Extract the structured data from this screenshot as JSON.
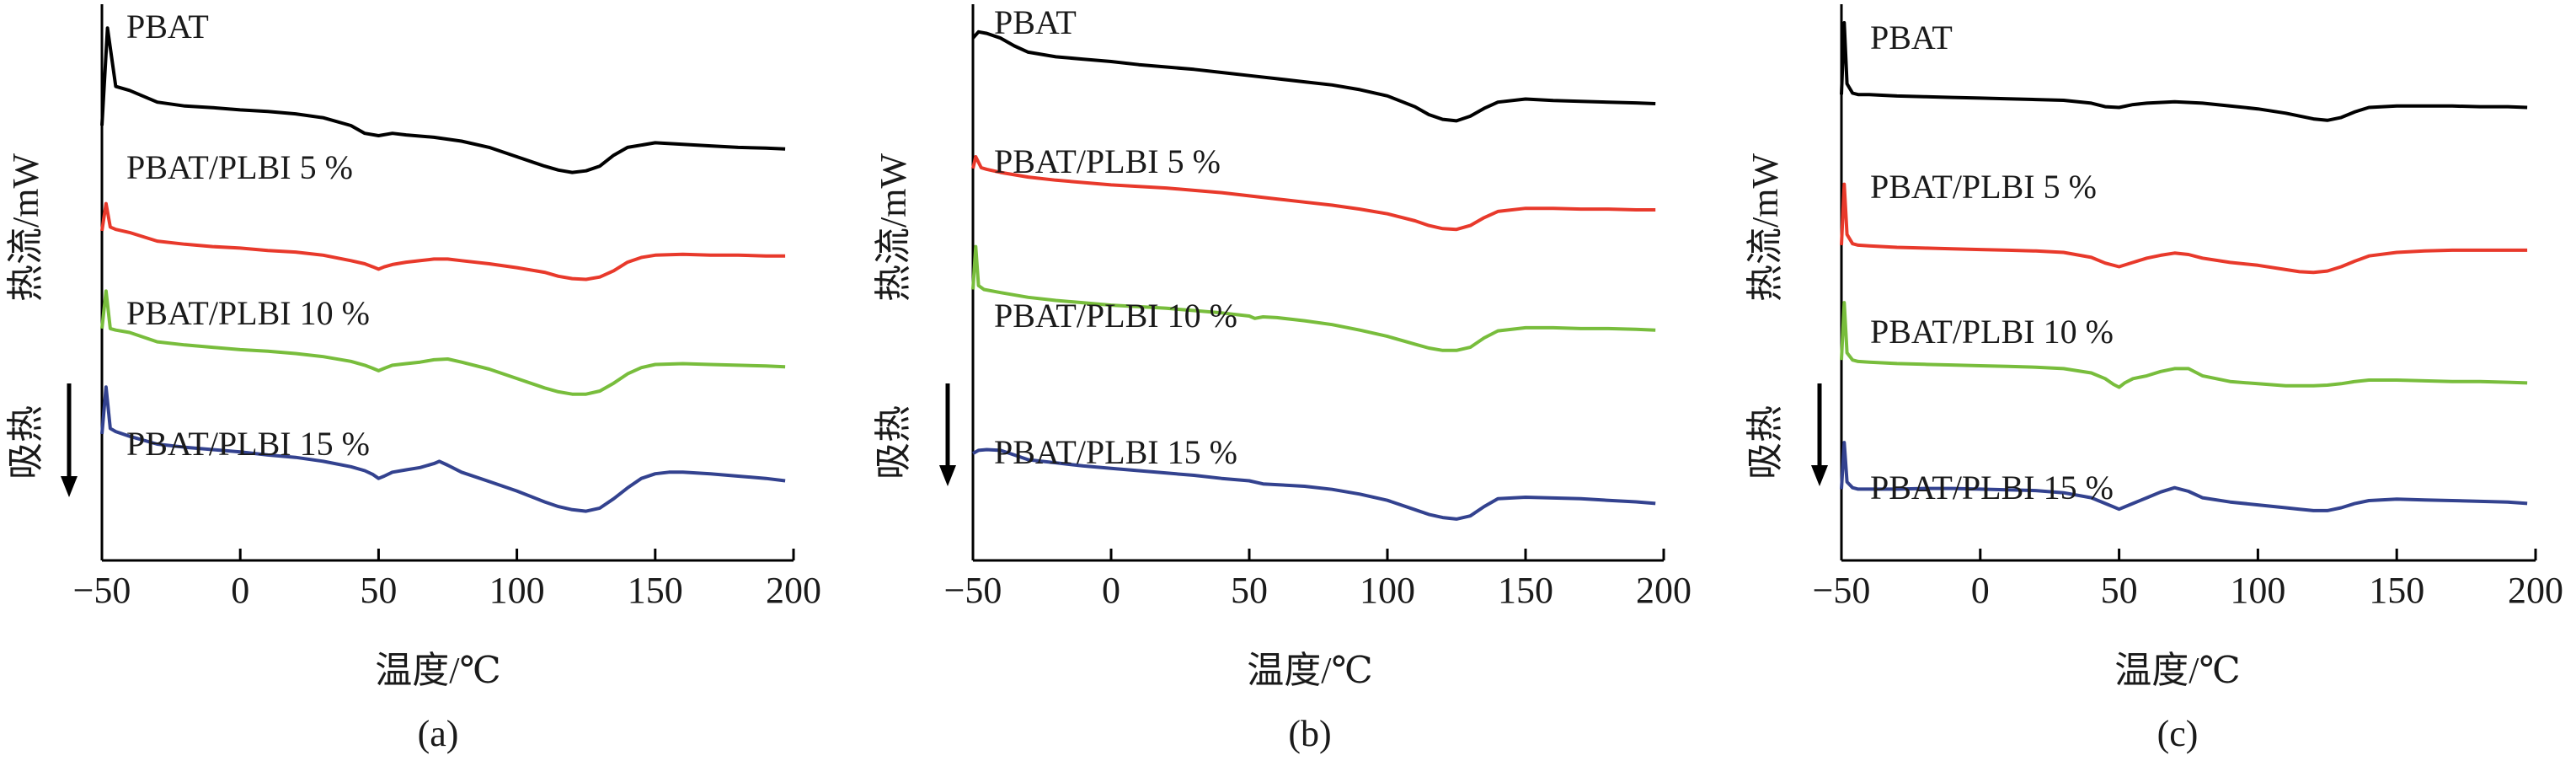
{
  "colors": {
    "PBAT": "#000000",
    "PBAT/PLBI 5 %": "#e8392b",
    "PBAT/PLBI 10 %": "#78bd3c",
    "PBAT/PLBI 15 %": "#33428f"
  },
  "chart_data": [
    {
      "type": "line",
      "panel_label": "(a)",
      "xlabel": "温度/℃",
      "ylabel": "热流/mW",
      "endo_label": "吸热",
      "xlim": [
        -50,
        200
      ],
      "xticks": [
        "−50",
        "0",
        "50",
        "100",
        "150",
        "200"
      ],
      "series": [
        {
          "name": "PBAT",
          "x": [
            -50,
            -48,
            -45,
            -40,
            -30,
            -20,
            -10,
            0,
            10,
            20,
            30,
            40,
            45,
            50,
            55,
            60,
            70,
            80,
            90,
            100,
            110,
            115,
            120,
            125,
            130,
            135,
            140,
            150,
            160,
            170,
            180,
            190,
            197
          ],
          "y": [
            2.7,
            3.95,
            3.2,
            3.15,
            3.0,
            2.95,
            2.93,
            2.9,
            2.88,
            2.85,
            2.8,
            2.7,
            2.6,
            2.57,
            2.6,
            2.58,
            2.55,
            2.5,
            2.42,
            2.3,
            2.18,
            2.13,
            2.1,
            2.12,
            2.18,
            2.32,
            2.42,
            2.48,
            2.46,
            2.44,
            2.42,
            2.41,
            2.4
          ]
        },
        {
          "name": "PBAT/PLBI 5 %",
          "x": [
            -50,
            -48.5,
            -47,
            -45,
            -40,
            -30,
            -20,
            -10,
            0,
            10,
            20,
            30,
            40,
            45,
            48,
            50,
            52,
            55,
            60,
            65,
            70,
            75,
            80,
            90,
            100,
            110,
            115,
            120,
            125,
            130,
            135,
            140,
            145,
            150,
            160,
            170,
            180,
            190,
            197
          ],
          "y": [
            1.35,
            1.7,
            1.4,
            1.37,
            1.33,
            1.22,
            1.18,
            1.15,
            1.13,
            1.1,
            1.08,
            1.04,
            0.97,
            0.93,
            0.89,
            0.86,
            0.89,
            0.92,
            0.95,
            0.97,
            0.99,
            0.99,
            0.97,
            0.93,
            0.88,
            0.82,
            0.77,
            0.74,
            0.73,
            0.76,
            0.84,
            0.95,
            1.01,
            1.04,
            1.05,
            1.04,
            1.04,
            1.03,
            1.03
          ]
        },
        {
          "name": "PBAT/PLBI 10 %",
          "x": [
            -50,
            -48.5,
            -47,
            -45,
            -40,
            -30,
            -20,
            -10,
            0,
            10,
            20,
            30,
            40,
            45,
            48,
            50,
            52,
            55,
            60,
            65,
            70,
            75,
            80,
            90,
            100,
            110,
            115,
            120,
            125,
            130,
            135,
            140,
            145,
            150,
            160,
            170,
            180,
            190,
            197
          ],
          "y": [
            0.1,
            0.58,
            0.1,
            0.08,
            0.05,
            -0.07,
            -0.11,
            -0.14,
            -0.17,
            -0.19,
            -0.22,
            -0.26,
            -0.32,
            -0.37,
            -0.41,
            -0.44,
            -0.41,
            -0.37,
            -0.35,
            -0.33,
            -0.3,
            -0.29,
            -0.33,
            -0.42,
            -0.54,
            -0.66,
            -0.71,
            -0.74,
            -0.74,
            -0.7,
            -0.6,
            -0.48,
            -0.4,
            -0.36,
            -0.35,
            -0.36,
            -0.37,
            -0.38,
            -0.39
          ]
        },
        {
          "name": "PBAT/PLBI 15 %",
          "x": [
            -50,
            -48.5,
            -47,
            -45,
            -40,
            -30,
            -20,
            -10,
            0,
            10,
            20,
            30,
            40,
            45,
            48,
            50,
            52,
            55,
            60,
            65,
            70,
            72,
            75,
            80,
            90,
            100,
            110,
            115,
            120,
            125,
            130,
            135,
            140,
            145,
            150,
            155,
            160,
            170,
            180,
            190,
            197
          ],
          "y": [
            -1.25,
            -0.65,
            -1.18,
            -1.22,
            -1.28,
            -1.38,
            -1.42,
            -1.45,
            -1.48,
            -1.52,
            -1.55,
            -1.6,
            -1.67,
            -1.72,
            -1.77,
            -1.82,
            -1.79,
            -1.74,
            -1.71,
            -1.68,
            -1.63,
            -1.6,
            -1.65,
            -1.74,
            -1.86,
            -1.98,
            -2.12,
            -2.18,
            -2.22,
            -2.24,
            -2.2,
            -2.08,
            -1.94,
            -1.82,
            -1.76,
            -1.74,
            -1.74,
            -1.76,
            -1.79,
            -1.82,
            -1.85
          ]
        }
      ]
    },
    {
      "type": "line",
      "panel_label": "(b)",
      "xlabel": "温度/℃",
      "ylabel": "热流/mW",
      "endo_label": "吸热",
      "xlim": [
        -50,
        200
      ],
      "xticks": [
        "−50",
        "0",
        "50",
        "100",
        "150",
        "200"
      ],
      "series": [
        {
          "name": "PBAT",
          "x": [
            -50,
            -48,
            -45,
            -40,
            -35,
            -30,
            -20,
            -10,
            0,
            10,
            20,
            30,
            40,
            50,
            60,
            70,
            80,
            90,
            100,
            110,
            115,
            120,
            125,
            130,
            135,
            140,
            150,
            160,
            170,
            180,
            190,
            197
          ],
          "y": [
            3.62,
            3.7,
            3.68,
            3.62,
            3.52,
            3.44,
            3.38,
            3.35,
            3.32,
            3.28,
            3.25,
            3.22,
            3.18,
            3.14,
            3.1,
            3.06,
            3.02,
            2.96,
            2.88,
            2.74,
            2.64,
            2.58,
            2.56,
            2.62,
            2.72,
            2.8,
            2.84,
            2.82,
            2.81,
            2.8,
            2.79,
            2.78
          ]
        },
        {
          "name": "PBAT/PLBI 5 %",
          "x": [
            -50,
            -49,
            -47,
            -45,
            -40,
            -30,
            -20,
            -10,
            0,
            10,
            20,
            30,
            40,
            50,
            60,
            70,
            80,
            90,
            100,
            110,
            115,
            120,
            125,
            130,
            135,
            140,
            150,
            160,
            170,
            180,
            190,
            197
          ],
          "y": [
            1.95,
            2.1,
            1.96,
            1.94,
            1.9,
            1.84,
            1.8,
            1.77,
            1.74,
            1.72,
            1.7,
            1.67,
            1.64,
            1.6,
            1.56,
            1.52,
            1.48,
            1.43,
            1.37,
            1.28,
            1.22,
            1.18,
            1.17,
            1.22,
            1.32,
            1.4,
            1.44,
            1.44,
            1.43,
            1.43,
            1.42,
            1.42
          ]
        },
        {
          "name": "PBAT/PLBI 10 %",
          "x": [
            -50,
            -49,
            -48,
            -46,
            -40,
            -30,
            -20,
            -10,
            0,
            10,
            20,
            30,
            40,
            50,
            52,
            55,
            60,
            70,
            80,
            90,
            100,
            110,
            115,
            120,
            125,
            130,
            135,
            140,
            150,
            160,
            170,
            180,
            190,
            197
          ],
          "y": [
            0.4,
            0.95,
            0.45,
            0.4,
            0.36,
            0.3,
            0.26,
            0.23,
            0.2,
            0.18,
            0.16,
            0.13,
            0.1,
            0.06,
            0.03,
            0.05,
            0.04,
            0.0,
            -0.05,
            -0.12,
            -0.2,
            -0.3,
            -0.35,
            -0.38,
            -0.38,
            -0.34,
            -0.22,
            -0.13,
            -0.09,
            -0.09,
            -0.1,
            -0.1,
            -0.11,
            -0.12
          ]
        },
        {
          "name": "PBAT/PLBI 15 %",
          "x": [
            -50,
            -48,
            -45,
            -40,
            -35,
            -30,
            -20,
            -10,
            0,
            10,
            20,
            30,
            40,
            50,
            55,
            60,
            70,
            80,
            90,
            100,
            110,
            115,
            120,
            125,
            130,
            135,
            140,
            150,
            160,
            170,
            180,
            190,
            197
          ],
          "y": [
            -1.7,
            -1.66,
            -1.65,
            -1.66,
            -1.72,
            -1.78,
            -1.82,
            -1.86,
            -1.89,
            -1.92,
            -1.95,
            -1.98,
            -2.02,
            -2.05,
            -2.09,
            -2.1,
            -2.12,
            -2.16,
            -2.22,
            -2.3,
            -2.42,
            -2.48,
            -2.52,
            -2.54,
            -2.5,
            -2.38,
            -2.28,
            -2.26,
            -2.27,
            -2.28,
            -2.3,
            -2.32,
            -2.34
          ]
        }
      ]
    },
    {
      "type": "line",
      "panel_label": "(c)",
      "xlabel": "温度/℃",
      "ylabel": "热流/mW",
      "endo_label": "吸热",
      "xlim": [
        -50,
        200
      ],
      "xticks": [
        "−50",
        "0",
        "50",
        "100",
        "150",
        "200"
      ],
      "series": [
        {
          "name": "PBAT",
          "x": [
            -50,
            -49,
            -48,
            -46,
            -44,
            -40,
            -30,
            -20,
            -10,
            0,
            10,
            20,
            30,
            40,
            45,
            50,
            55,
            60,
            70,
            80,
            90,
            100,
            110,
            115,
            120,
            125,
            130,
            135,
            140,
            150,
            160,
            170,
            180,
            190,
            197
          ],
          "y": [
            3.2,
            4.2,
            3.35,
            3.22,
            3.2,
            3.2,
            3.18,
            3.17,
            3.16,
            3.15,
            3.14,
            3.13,
            3.12,
            3.08,
            3.03,
            3.02,
            3.06,
            3.08,
            3.1,
            3.08,
            3.04,
            3.0,
            2.94,
            2.9,
            2.86,
            2.84,
            2.88,
            2.96,
            3.02,
            3.04,
            3.04,
            3.04,
            3.03,
            3.03,
            3.02
          ]
        },
        {
          "name": "PBAT/PLBI 5 %",
          "x": [
            -50,
            -49,
            -48,
            -46,
            -44,
            -40,
            -30,
            -20,
            -10,
            0,
            10,
            20,
            30,
            40,
            45,
            50,
            55,
            60,
            65,
            70,
            75,
            80,
            90,
            100,
            110,
            115,
            120,
            125,
            130,
            135,
            140,
            150,
            160,
            170,
            180,
            190,
            197
          ],
          "y": [
            1.1,
            1.95,
            1.25,
            1.12,
            1.1,
            1.09,
            1.07,
            1.06,
            1.05,
            1.04,
            1.03,
            1.02,
            1.0,
            0.93,
            0.85,
            0.8,
            0.86,
            0.92,
            0.96,
            0.99,
            0.97,
            0.92,
            0.86,
            0.82,
            0.76,
            0.73,
            0.72,
            0.74,
            0.8,
            0.88,
            0.95,
            1.0,
            1.02,
            1.03,
            1.03,
            1.03,
            1.03
          ]
        },
        {
          "name": "PBAT/PLBI 10 %",
          "x": [
            -50,
            -49,
            -48,
            -46,
            -44,
            -40,
            -30,
            -20,
            -10,
            0,
            10,
            20,
            30,
            40,
            45,
            48,
            50,
            52,
            55,
            60,
            65,
            70,
            75,
            80,
            90,
            100,
            110,
            115,
            120,
            125,
            130,
            135,
            140,
            150,
            160,
            170,
            180,
            190,
            197
          ],
          "y": [
            -0.5,
            0.3,
            -0.4,
            -0.5,
            -0.52,
            -0.53,
            -0.55,
            -0.56,
            -0.57,
            -0.58,
            -0.59,
            -0.6,
            -0.62,
            -0.68,
            -0.76,
            -0.84,
            -0.88,
            -0.82,
            -0.76,
            -0.72,
            -0.66,
            -0.62,
            -0.62,
            -0.72,
            -0.8,
            -0.83,
            -0.86,
            -0.86,
            -0.86,
            -0.85,
            -0.83,
            -0.8,
            -0.78,
            -0.78,
            -0.79,
            -0.8,
            -0.8,
            -0.81,
            -0.82
          ]
        },
        {
          "name": "PBAT/PLBI 15 %",
          "x": [
            -50,
            -49,
            -48,
            -46,
            -44,
            -40,
            -30,
            -20,
            -10,
            0,
            10,
            20,
            30,
            40,
            45,
            50,
            55,
            60,
            65,
            70,
            75,
            80,
            90,
            100,
            110,
            115,
            120,
            125,
            130,
            135,
            140,
            150,
            160,
            170,
            180,
            190,
            197
          ],
          "y": [
            -2.3,
            -1.65,
            -2.2,
            -2.28,
            -2.3,
            -2.3,
            -2.3,
            -2.29,
            -2.29,
            -2.3,
            -2.31,
            -2.32,
            -2.35,
            -2.42,
            -2.5,
            -2.58,
            -2.5,
            -2.42,
            -2.34,
            -2.28,
            -2.33,
            -2.42,
            -2.48,
            -2.52,
            -2.56,
            -2.58,
            -2.6,
            -2.6,
            -2.56,
            -2.5,
            -2.46,
            -2.44,
            -2.45,
            -2.46,
            -2.47,
            -2.48,
            -2.5
          ]
        }
      ]
    }
  ]
}
